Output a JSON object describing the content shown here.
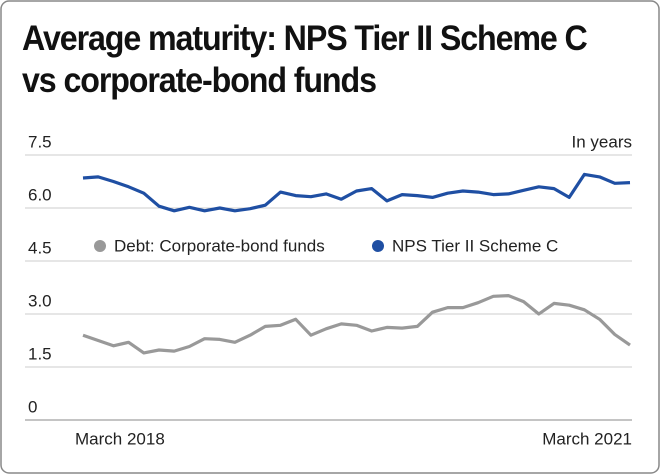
{
  "chart_data": {
    "type": "line",
    "title": "Average maturity: NPS Tier II Scheme C vs corporate-bond funds",
    "annotation": "In years",
    "categories": [
      "March 2018",
      null,
      null,
      null,
      null,
      null,
      null,
      null,
      null,
      null,
      null,
      null,
      null,
      null,
      null,
      null,
      null,
      null,
      null,
      null,
      null,
      null,
      null,
      null,
      null,
      null,
      null,
      null,
      null,
      null,
      null,
      null,
      null,
      null,
      null,
      null,
      "March 2021"
    ],
    "series": [
      {
        "name": "Debt: Corporate-bond funds",
        "color": "#999999",
        "values": [
          2.4,
          2.25,
          2.1,
          2.2,
          1.9,
          1.98,
          1.95,
          2.08,
          2.3,
          2.28,
          2.2,
          2.4,
          2.65,
          2.68,
          2.85,
          2.4,
          2.58,
          2.72,
          2.68,
          2.52,
          2.62,
          2.6,
          2.65,
          3.05,
          3.18,
          3.18,
          3.32,
          3.5,
          3.52,
          3.35,
          3.0,
          3.3,
          3.25,
          3.12,
          2.85,
          2.42,
          2.12
        ]
      },
      {
        "name": "NPS Tier II Scheme C",
        "color": "#1f4fa3",
        "values": [
          6.85,
          6.88,
          6.75,
          6.6,
          6.42,
          6.05,
          5.92,
          6.02,
          5.92,
          6.0,
          5.92,
          5.98,
          6.08,
          6.45,
          6.35,
          6.32,
          6.4,
          6.25,
          6.48,
          6.55,
          6.2,
          6.38,
          6.35,
          6.3,
          6.42,
          6.48,
          6.45,
          6.38,
          6.4,
          6.5,
          6.6,
          6.55,
          6.3,
          6.95,
          6.88,
          6.7,
          6.72
        ]
      }
    ],
    "ylim": [
      0,
      7.5
    ],
    "yticks": [
      0,
      1.5,
      {
        "value": 3,
        "label": "3.0"
      },
      4.5,
      {
        "value": 6,
        "label": "6.0"
      },
      7.5
    ],
    "grid": true
  }
}
